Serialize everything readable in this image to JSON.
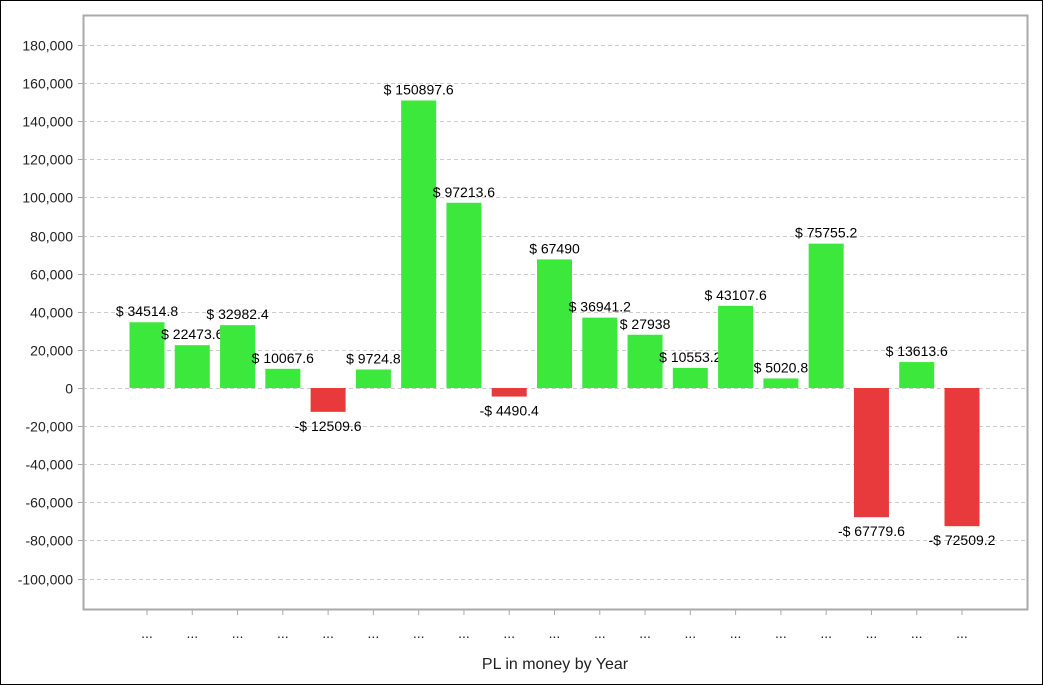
{
  "chart_data": {
    "type": "bar",
    "title": "",
    "xlabel": "PL in money by Year",
    "ylabel": "",
    "categories": [
      "...",
      "...",
      "...",
      "...",
      "...",
      "...",
      "...",
      "...",
      "...",
      "...",
      "...",
      "...",
      "...",
      "...",
      "...",
      "...",
      "...",
      "...",
      "..."
    ],
    "values": [
      34514.8,
      22473.6,
      32982.4,
      10067.6,
      -12509.6,
      9724.8,
      150897.6,
      97213.6,
      -4490.4,
      67490,
      36941.2,
      27938,
      10553.2,
      43107.6,
      5020.8,
      75755.2,
      -67779.6,
      13613.6,
      -72509.2
    ],
    "data_labels": [
      "$ 34514.8",
      "$ 22473.6",
      "$ 32982.4",
      "$ 10067.6",
      "-$ 12509.6",
      "$ 9724.8",
      "$ 150897.6",
      "$ 97213.6",
      "-$ 4490.4",
      "$ 67490",
      "$ 36941.2",
      "$ 27938",
      "$ 10553.2",
      "$ 43107.6",
      "$ 5020.8",
      "$ 75755.2",
      "-$ 67779.6",
      "$ 13613.6",
      "-$ 72509.2"
    ],
    "yticks": [
      180000,
      160000,
      140000,
      120000,
      100000,
      80000,
      60000,
      40000,
      20000,
      0,
      -20000,
      -40000,
      -60000,
      -80000,
      -100000
    ],
    "ytick_labels": [
      "180,000",
      "160,000",
      "140,000",
      "120,000",
      "100,000",
      "80,000",
      "60,000",
      "40,000",
      "20,000",
      "0",
      "-20,000",
      "-40,000",
      "-60,000",
      "-80,000",
      "-100,000"
    ],
    "ylim": [
      -116500,
      195750
    ],
    "grid": true,
    "legend": "none",
    "colors": {
      "positive": "#3de83d",
      "negative": "#e8393d",
      "grid": "#cccccc",
      "axis": "#aaaaaa"
    }
  }
}
